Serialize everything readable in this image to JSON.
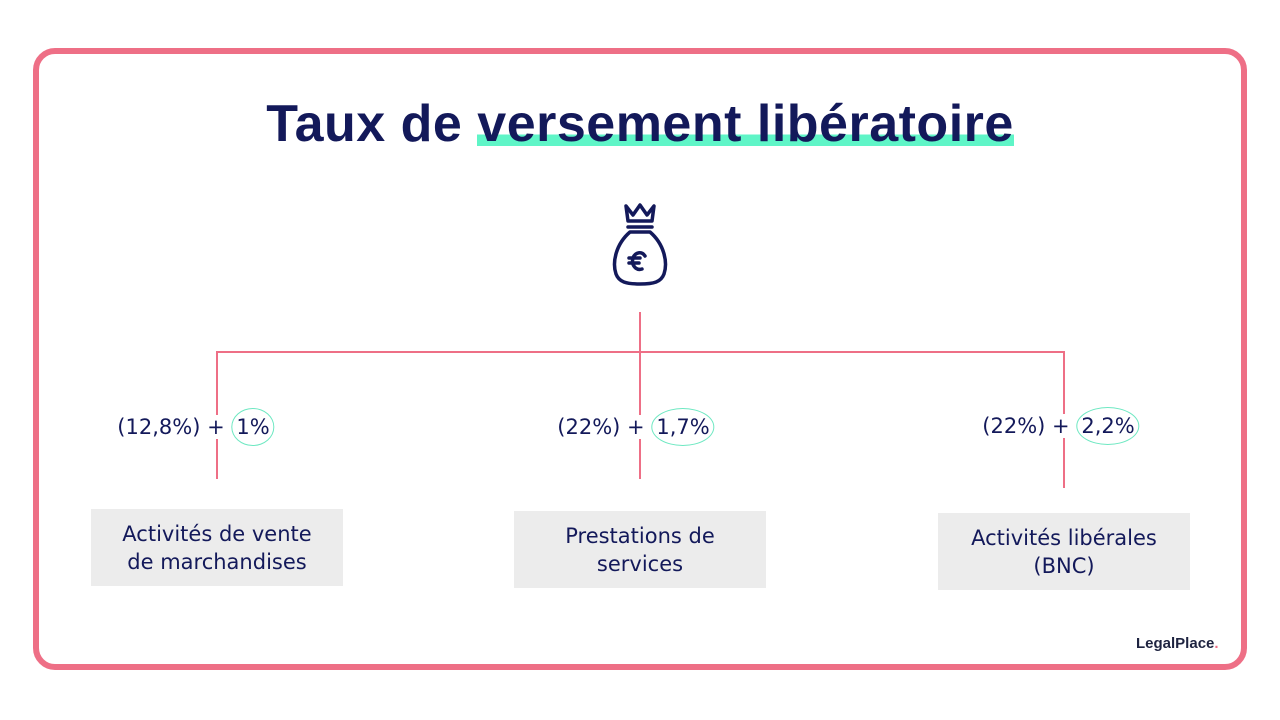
{
  "title": {
    "plain": "Taux de ",
    "highlight": "versement libératoire"
  },
  "icon": "money-bag-euro-icon",
  "branches": [
    {
      "base": "(12,8%) +",
      "rate": "1%",
      "label": "Activités de vente de marchandises"
    },
    {
      "base": "(22%) +",
      "rate": "1,7%",
      "label": "Prestations de services"
    },
    {
      "base": "(22%) +",
      "rate": "2,2%",
      "label": "Activités libérales (BNC)"
    }
  ],
  "logo": {
    "text": "LegalPlace",
    "dot": "."
  },
  "colors": {
    "accent": "#ee6f86",
    "highlight": "#5ff5c7",
    "text": "#13195a"
  }
}
